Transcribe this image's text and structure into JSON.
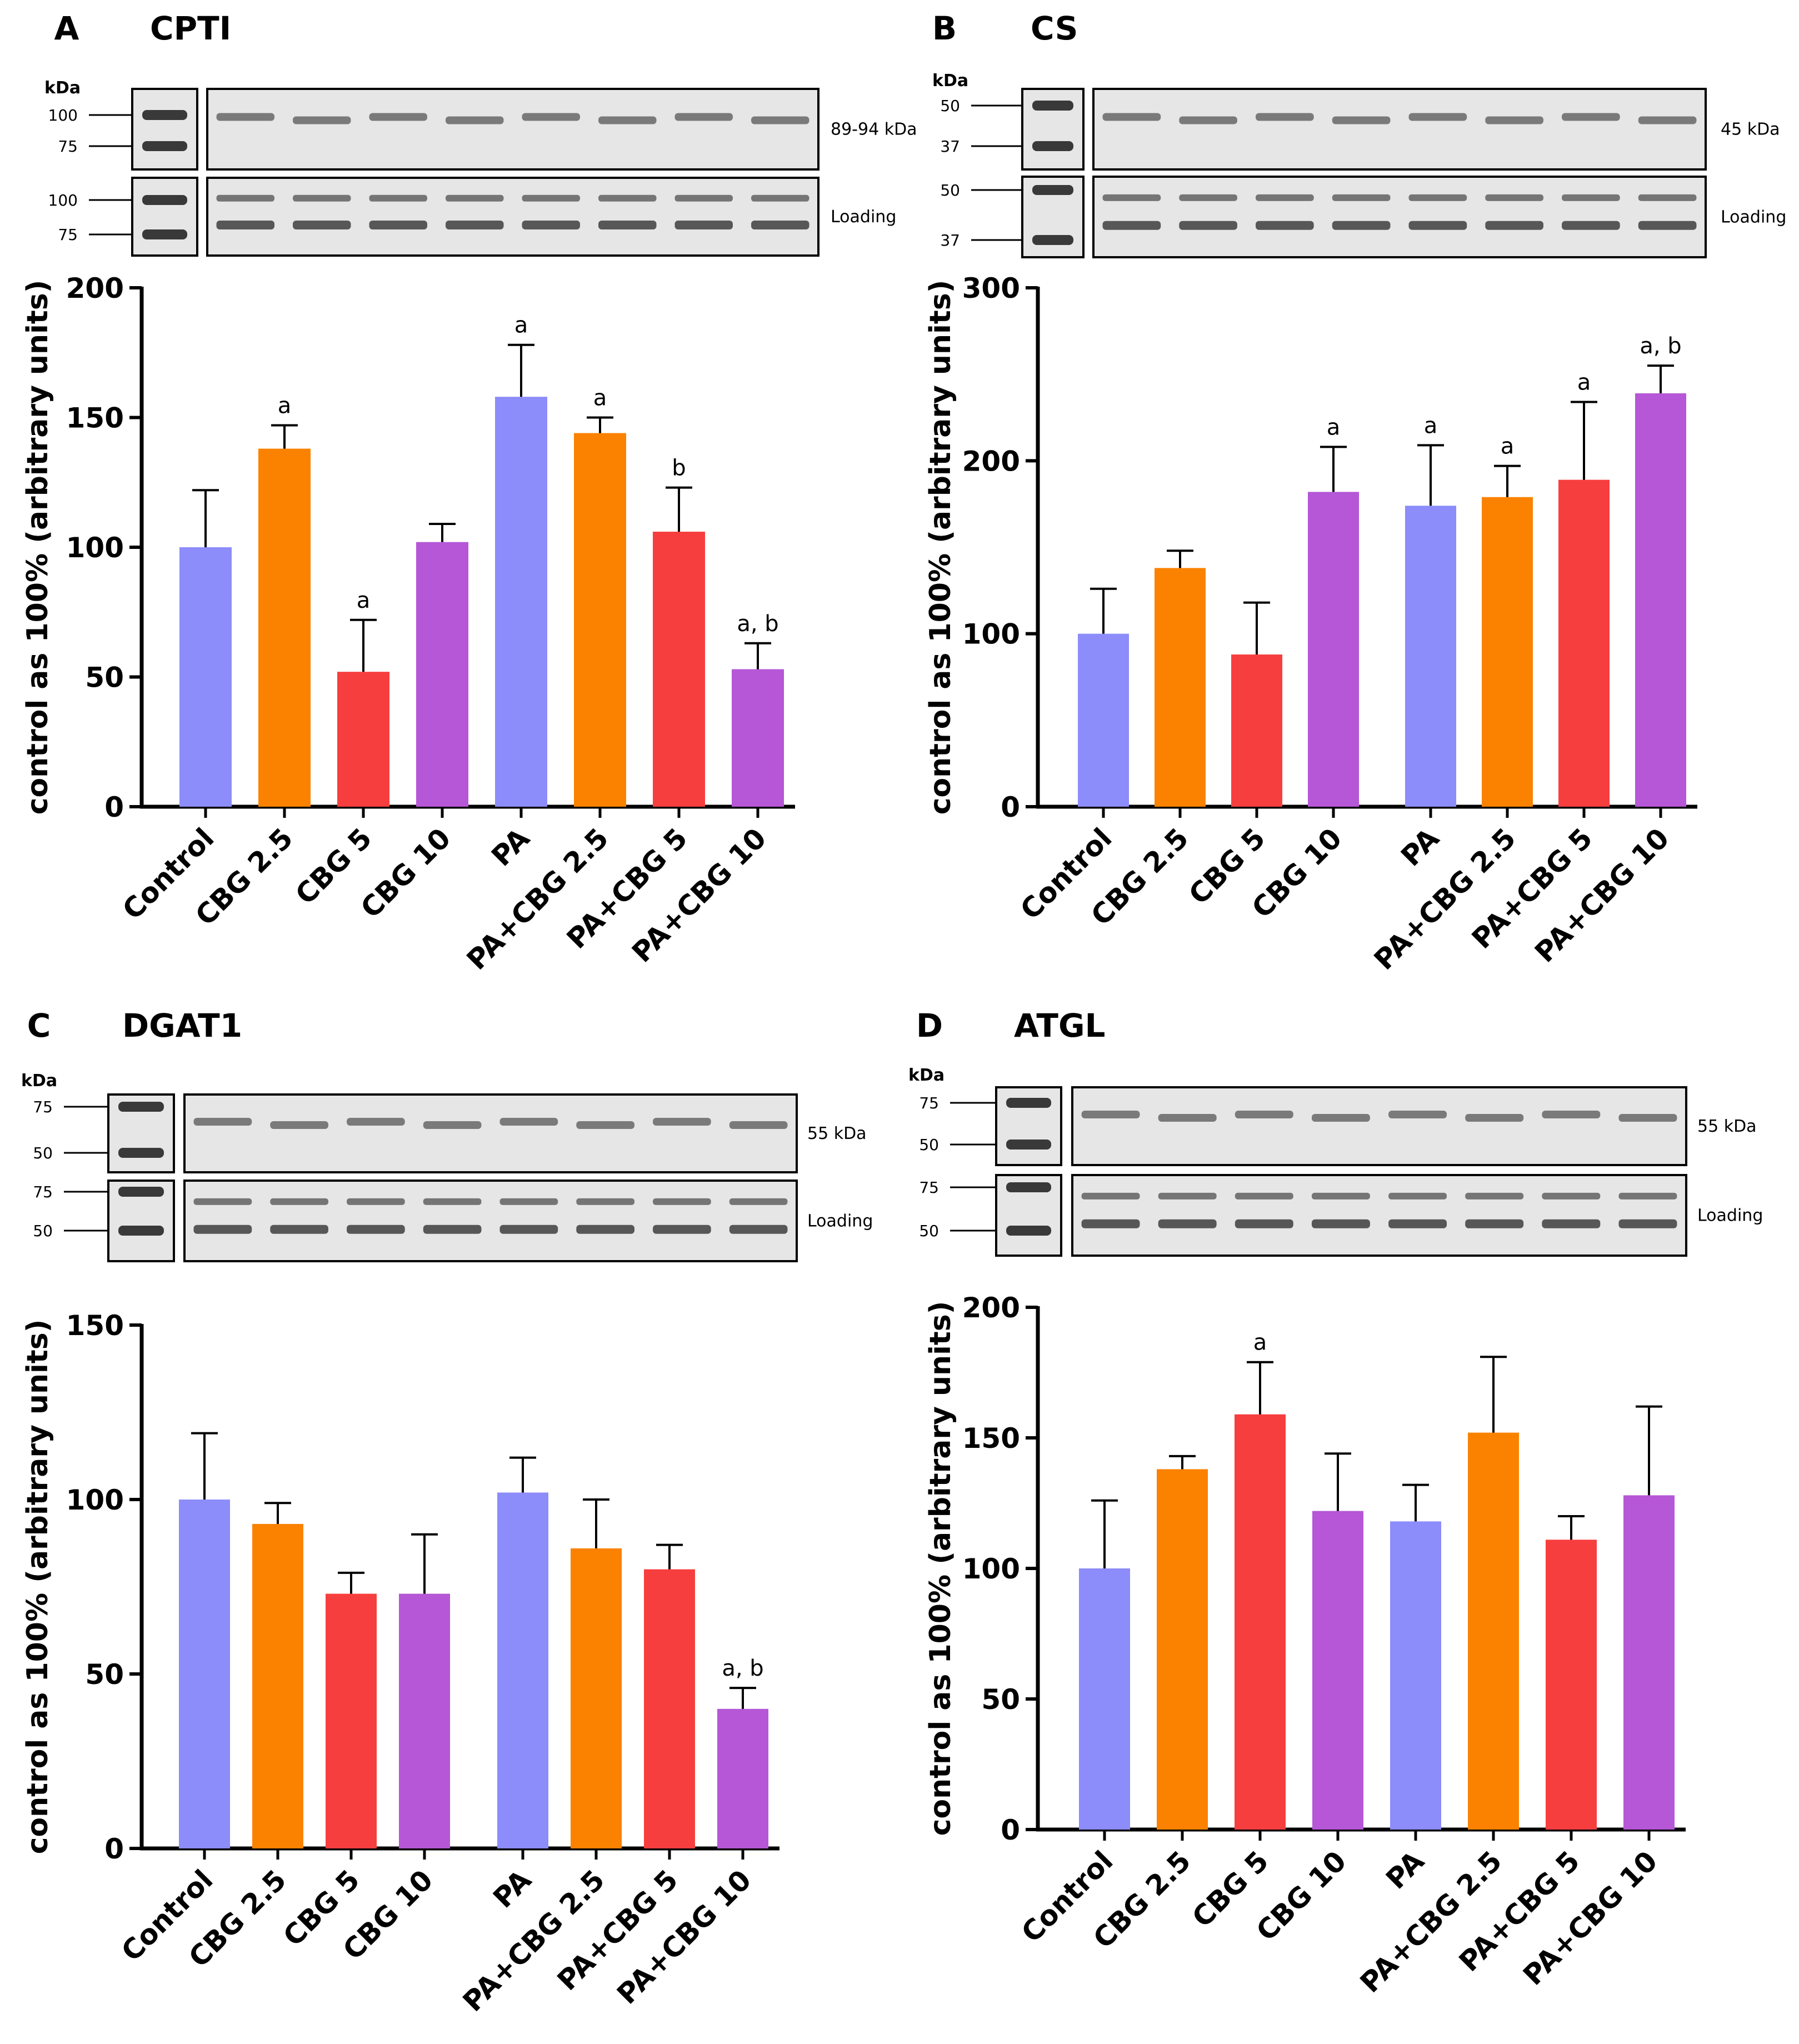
{
  "colors": {
    "blue": "#8C8CFA",
    "orange": "#FA8200",
    "red": "#F73E3E",
    "purple": "#B557D6",
    "axis": "#000000"
  },
  "chart_data": [
    {
      "type": "bar",
      "panel": "A",
      "title": "CPTI",
      "ylabel": "control as 100% (arbitrary units)",
      "ylim": [
        0,
        200
      ],
      "yticks": [
        0,
        50,
        100,
        150,
        200
      ],
      "categories": [
        "Control",
        "CBG 2.5",
        "CBG 5",
        "CBG 10",
        "PA",
        "PA+CBG 2.5",
        "PA+CBG 5",
        "PA+CBG 10"
      ],
      "values": [
        100,
        138,
        52,
        102,
        158,
        144,
        106,
        53
      ],
      "errors": [
        22,
        9,
        20,
        7,
        20,
        6,
        17,
        10
      ],
      "annotations": [
        "",
        "a",
        "a",
        "",
        "a",
        "a",
        "b",
        "a, b"
      ],
      "blot": {
        "kda_label": "kDa",
        "markers_top": [
          "100",
          "75"
        ],
        "markers_loading": [
          "100",
          "75"
        ],
        "band_label": "89-94 kDa",
        "loading_label": "Loading"
      }
    },
    {
      "type": "bar",
      "panel": "B",
      "title": "CS",
      "ylabel": "control as 100% (arbitrary units)",
      "ylim": [
        0,
        300
      ],
      "yticks": [
        0,
        100,
        200,
        300
      ],
      "categories": [
        "Control",
        "CBG 2.5",
        "CBG 5",
        "CBG 10",
        "PA",
        "PA+CBG 2.5",
        "PA+CBG 5",
        "PA+CBG 10"
      ],
      "values": [
        100,
        138,
        88,
        182,
        174,
        179,
        189,
        239
      ],
      "errors": [
        26,
        10,
        30,
        26,
        35,
        18,
        45,
        16
      ],
      "annotations": [
        "",
        "",
        "",
        "a",
        "a",
        "a",
        "a",
        "a, b"
      ],
      "blot": {
        "kda_label": "kDa",
        "markers_top": [
          "50",
          "37"
        ],
        "markers_loading": [
          "50",
          "37"
        ],
        "band_label": "45 kDa",
        "loading_label": "Loading"
      }
    },
    {
      "type": "bar",
      "panel": "C",
      "title": "DGAT1",
      "ylabel": "control as 100% (arbitrary units)",
      "ylim": [
        0,
        150
      ],
      "yticks": [
        0,
        50,
        100,
        150
      ],
      "categories": [
        "Control",
        "CBG 2.5",
        "CBG 5",
        "CBG 10",
        "PA",
        "PA+CBG 2.5",
        "PA+CBG 5",
        "PA+CBG 10"
      ],
      "values": [
        100,
        93,
        73,
        73,
        102,
        86,
        80,
        40
      ],
      "errors": [
        19,
        6,
        6,
        17,
        10,
        14,
        7,
        6
      ],
      "annotations": [
        "",
        "",
        "",
        "",
        "",
        "",
        "",
        "a, b"
      ],
      "blot": {
        "kda_label": "kDa",
        "markers_top": [
          "75",
          "50"
        ],
        "markers_loading": [
          "75",
          "50"
        ],
        "band_label": "55 kDa",
        "loading_label": "Loading"
      }
    },
    {
      "type": "bar",
      "panel": "D",
      "title": "ATGL",
      "ylabel": "control as 100% (arbitrary units)",
      "ylim": [
        0,
        200
      ],
      "yticks": [
        0,
        50,
        100,
        150,
        200
      ],
      "categories": [
        "Control",
        "CBG 2.5",
        "CBG 5",
        "CBG 10",
        "PA",
        "PA+CBG 2.5",
        "PA+CBG 5",
        "PA+CBG 10"
      ],
      "values": [
        100,
        138,
        159,
        122,
        118,
        152,
        111,
        128
      ],
      "errors": [
        26,
        5,
        20,
        22,
        14,
        29,
        9,
        34
      ],
      "annotations": [
        "",
        "",
        "a",
        "",
        "",
        "",
        "",
        ""
      ],
      "blot": {
        "kda_label": "kDa",
        "markers_top": [
          "75",
          "50"
        ],
        "markers_loading": [
          "75",
          "50"
        ],
        "band_label": "55 kDa",
        "loading_label": "Loading"
      }
    }
  ]
}
